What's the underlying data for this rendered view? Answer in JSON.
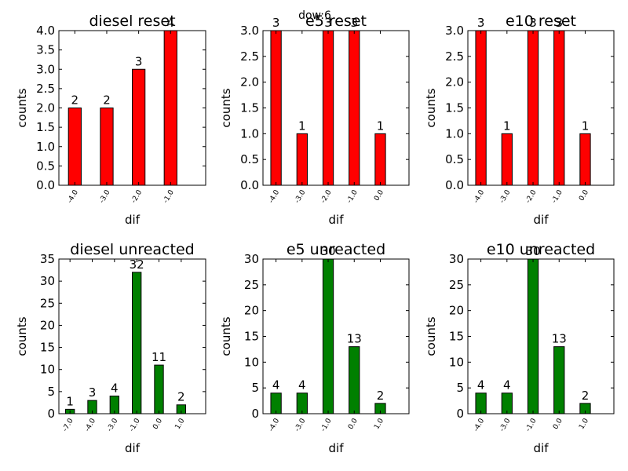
{
  "suptitle": "dow:6",
  "chart_data": [
    {
      "type": "bar",
      "title": "diesel reset",
      "xlabel": "dif",
      "ylabel": "counts",
      "categories": [
        "-4.0",
        "-3.0",
        "-2.0",
        "-1.0"
      ],
      "values": [
        2,
        2,
        3,
        4
      ],
      "ylim": [
        0,
        4
      ],
      "yticks": [
        "0.0",
        "0.5",
        "1.0",
        "1.5",
        "2.0",
        "2.5",
        "3.0",
        "3.5",
        "4.0"
      ],
      "color": "#ff0000"
    },
    {
      "type": "bar",
      "title": "e5 reset",
      "xlabel": "dif",
      "ylabel": "counts",
      "categories": [
        "-4.0",
        "-3.0",
        "-2.0",
        "-1.0",
        "0.0"
      ],
      "values": [
        3,
        1,
        3,
        3,
        1
      ],
      "ylim": [
        0,
        3
      ],
      "yticks": [
        "0.0",
        "0.5",
        "1.0",
        "1.5",
        "2.0",
        "2.5",
        "3.0"
      ],
      "color": "#ff0000"
    },
    {
      "type": "bar",
      "title": "e10 reset",
      "xlabel": "dif",
      "ylabel": "counts",
      "categories": [
        "-4.0",
        "-3.0",
        "-2.0",
        "-1.0",
        "0.0"
      ],
      "values": [
        3,
        1,
        3,
        3,
        1
      ],
      "ylim": [
        0,
        3
      ],
      "yticks": [
        "0.0",
        "0.5",
        "1.0",
        "1.5",
        "2.0",
        "2.5",
        "3.0"
      ],
      "color": "#ff0000"
    },
    {
      "type": "bar",
      "title": "diesel unreacted",
      "xlabel": "dif",
      "ylabel": "counts",
      "categories": [
        "-7.0",
        "-4.0",
        "-3.0",
        "-1.0",
        "0.0",
        "1.0"
      ],
      "values": [
        1,
        3,
        4,
        32,
        11,
        2
      ],
      "ylim": [
        0,
        35
      ],
      "yticks": [
        "0",
        "5",
        "10",
        "15",
        "20",
        "25",
        "30",
        "35"
      ],
      "color": "#008000"
    },
    {
      "type": "bar",
      "title": "e5 unreacted",
      "xlabel": "dif",
      "ylabel": "counts",
      "categories": [
        "-4.0",
        "-3.0",
        "-1.0",
        "0.0",
        "1.0"
      ],
      "values": [
        4,
        4,
        30,
        13,
        2
      ],
      "ylim": [
        0,
        30
      ],
      "yticks": [
        "0",
        "5",
        "10",
        "15",
        "20",
        "25",
        "30"
      ],
      "color": "#008000"
    },
    {
      "type": "bar",
      "title": "e10 unreacted",
      "xlabel": "dif",
      "ylabel": "counts",
      "categories": [
        "-4.0",
        "-3.0",
        "-1.0",
        "0.0",
        "1.0"
      ],
      "values": [
        4,
        4,
        30,
        13,
        2
      ],
      "ylim": [
        0,
        30
      ],
      "yticks": [
        "0",
        "5",
        "10",
        "15",
        "20",
        "25",
        "30"
      ],
      "color": "#008000"
    }
  ]
}
